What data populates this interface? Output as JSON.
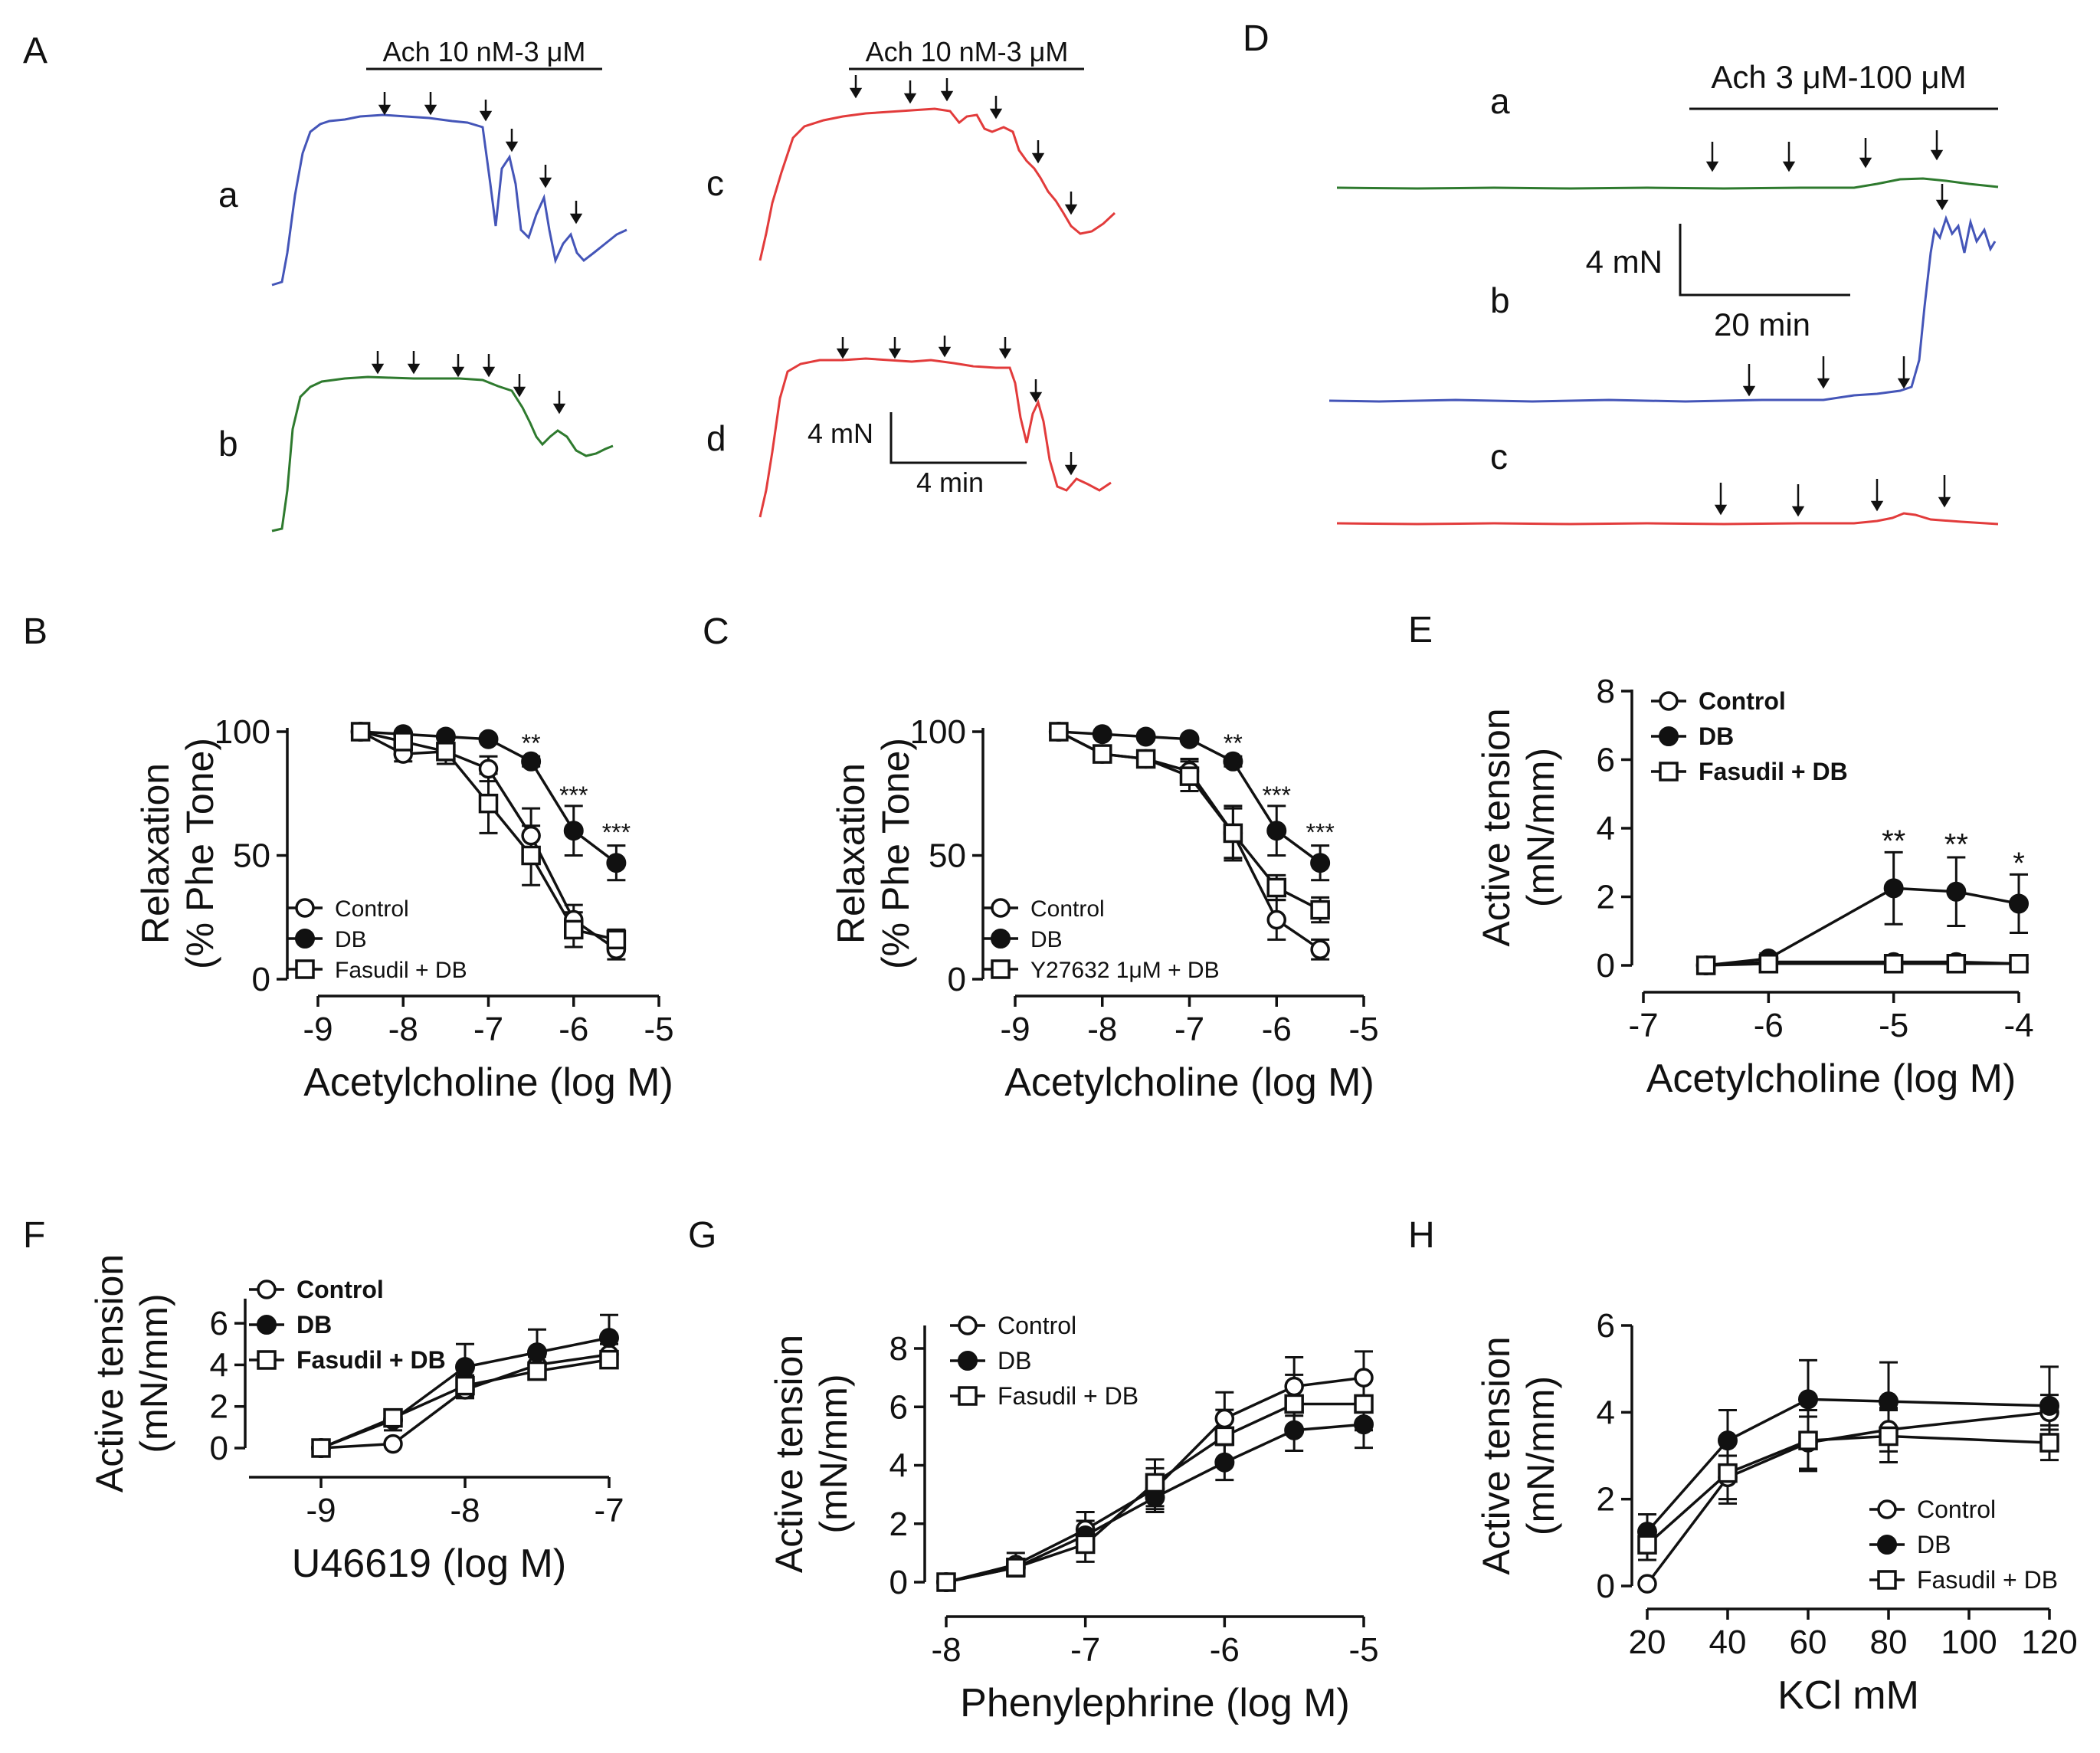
{
  "panel_letters": {
    "A": "A",
    "B": "B",
    "C": "C",
    "D": "D",
    "E": "E",
    "F": "F",
    "G": "G",
    "H": "H"
  },
  "colors": {
    "blue": "#4455b8",
    "green": "#2e7a2e",
    "red": "#e23b3b",
    "ink": "#111111"
  },
  "trace_labels": {
    "a": "a",
    "b": "b",
    "c": "c",
    "d": "d",
    "Da": "a",
    "Db": "b",
    "Dc": "c"
  },
  "annotations": {
    "ach_a": "Ach 10 nM-3 μM",
    "ach_c": "Ach 10 nM-3 μM",
    "ach_D": "Ach 3 μM-100 μM",
    "scale_A_y": "4 mN",
    "scale_A_x": "4 min",
    "scale_D_y": "4 mN",
    "scale_D_x": "20 min"
  },
  "chart_data": [
    {
      "id": "B",
      "type": "line",
      "xlabel": "Acetylcholine (log M)",
      "ylabel": [
        "Relaxation",
        "(% Phe Tone)"
      ],
      "xlim": [
        -9,
        -5
      ],
      "ylim": [
        0,
        100
      ],
      "xticks": [
        -9,
        -8,
        -7,
        -6,
        -5
      ],
      "xtick_labels": [
        "-9",
        "-8",
        "-7",
        "-6",
        "-5"
      ],
      "yticks": [
        0,
        50,
        100
      ],
      "ytick_labels": [
        "0",
        "50",
        "100"
      ],
      "legend": "bottom-left",
      "legend_bold": false,
      "series": [
        {
          "name": "Control",
          "marker": "open-circle",
          "x": [
            -8.5,
            -8,
            -7.5,
            -7,
            -6.5,
            -6,
            -5.5
          ],
          "y": [
            100,
            91,
            92,
            85,
            58,
            24,
            12
          ],
          "err": [
            0,
            3,
            3,
            5,
            11,
            6,
            4
          ]
        },
        {
          "name": "DB",
          "marker": "filled-circle",
          "x": [
            -8.5,
            -8,
            -7.5,
            -7,
            -6.5,
            -6,
            -5.5
          ],
          "y": [
            100,
            99,
            98,
            97,
            88,
            60,
            47
          ],
          "err": [
            0,
            1,
            1,
            1,
            2,
            10,
            7
          ]
        },
        {
          "name": "Fasudil + DB",
          "marker": "open-square",
          "x": [
            -8.5,
            -8,
            -7.5,
            -7,
            -6.5,
            -6,
            -5.5
          ],
          "y": [
            100,
            96,
            92,
            71,
            50,
            20,
            16
          ],
          "err": [
            0,
            3,
            5,
            12,
            12,
            7,
            4
          ]
        }
      ],
      "sig": [
        {
          "x": -6.5,
          "y": 95,
          "text": "**"
        },
        {
          "x": -6,
          "y": 74,
          "text": "***"
        },
        {
          "x": -5.5,
          "y": 59,
          "text": "***"
        }
      ]
    },
    {
      "id": "C",
      "type": "line",
      "xlabel": "Acetylcholine (log M)",
      "ylabel": [
        "Relaxation",
        "(% Phe Tone)"
      ],
      "xlim": [
        -9,
        -5
      ],
      "ylim": [
        0,
        100
      ],
      "xticks": [
        -9,
        -8,
        -7,
        -6,
        -5
      ],
      "xtick_labels": [
        "-9",
        "-8",
        "-7",
        "-6",
        "-5"
      ],
      "yticks": [
        0,
        50,
        100
      ],
      "ytick_labels": [
        "0",
        "50",
        "100"
      ],
      "legend": "bottom-left",
      "legend_bold": false,
      "series": [
        {
          "name": "Control",
          "marker": "open-circle",
          "x": [
            -8.5,
            -8,
            -7.5,
            -7,
            -6.5,
            -6,
            -5.5
          ],
          "y": [
            100,
            91,
            89,
            84,
            59,
            24,
            12
          ],
          "err": [
            0,
            2,
            2,
            5,
            11,
            8,
            4
          ]
        },
        {
          "name": "DB",
          "marker": "filled-circle",
          "x": [
            -8.5,
            -8,
            -7.5,
            -7,
            -6.5,
            -6,
            -5.5
          ],
          "y": [
            100,
            99,
            98,
            97,
            88,
            60,
            47
          ],
          "err": [
            0,
            1,
            1,
            1,
            2,
            10,
            7
          ]
        },
        {
          "name": "Y27632 1μM + DB",
          "marker": "open-square",
          "x": [
            -8.5,
            -8,
            -7.5,
            -7,
            -6.5,
            -6,
            -5.5
          ],
          "y": [
            100,
            91,
            89,
            82,
            59,
            37,
            28
          ],
          "err": [
            0,
            2,
            2,
            6,
            10,
            5,
            5
          ]
        }
      ],
      "sig": [
        {
          "x": -6.5,
          "y": 95,
          "text": "**"
        },
        {
          "x": -6,
          "y": 74,
          "text": "***"
        },
        {
          "x": -5.5,
          "y": 59,
          "text": "***"
        }
      ]
    },
    {
      "id": "E",
      "type": "line",
      "xlabel": "Acetylcholine (log M)",
      "ylabel": [
        "Active tension",
        "(mN/mm)"
      ],
      "xlim": [
        -7,
        -4
      ],
      "ylim": [
        0,
        8
      ],
      "xticks": [
        -7,
        -6,
        -5,
        -4
      ],
      "xtick_labels": [
        "-7",
        "-6",
        "-5",
        "-4"
      ],
      "yticks": [
        0,
        2,
        4,
        6,
        8
      ],
      "ytick_labels": [
        "0",
        "2",
        "4",
        "6",
        "8"
      ],
      "legend": "top-left",
      "legend_bold": true,
      "series": [
        {
          "name": "Control",
          "marker": "open-circle",
          "x": [
            -6.5,
            -6,
            -5,
            -4.5,
            -4
          ],
          "y": [
            0,
            0.1,
            0.1,
            0.1,
            0.05
          ],
          "err": [
            0.1,
            0.1,
            0.1,
            0.1,
            0.1
          ]
        },
        {
          "name": "DB",
          "marker": "filled-circle",
          "x": [
            -6.5,
            -6,
            -5,
            -4.5,
            -4
          ],
          "y": [
            0,
            0.2,
            2.25,
            2.15,
            1.8
          ],
          "err": [
            0.1,
            0.15,
            1.05,
            1.0,
            0.85
          ]
        },
        {
          "name": "Fasudil + DB",
          "marker": "open-square",
          "x": [
            -6.5,
            -6,
            -5,
            -4.5,
            -4
          ],
          "y": [
            0,
            0.05,
            0.05,
            0.05,
            0.05
          ],
          "err": [
            0.1,
            0.1,
            0.1,
            0.1,
            0.1
          ]
        }
      ],
      "sig": [
        {
          "x": -5,
          "y": 3.55,
          "text": "**"
        },
        {
          "x": -4.5,
          "y": 3.45,
          "text": "**"
        },
        {
          "x": -4,
          "y": 2.9,
          "text": "*"
        }
      ]
    },
    {
      "id": "F",
      "type": "line",
      "xlabel": "U46619 (log M)",
      "ylabel": [
        "Active tension",
        "(mN/mm)"
      ],
      "xlim": [
        -9.5,
        -7
      ],
      "ylim": [
        0,
        7
      ],
      "xticks": [
        -9,
        -8,
        -7
      ],
      "xtick_labels": [
        "-9",
        "-8",
        "-7"
      ],
      "yticks": [
        0,
        2,
        4,
        6
      ],
      "ytick_labels": [
        "0",
        "2",
        "4",
        "6"
      ],
      "legend": "top-left",
      "legend_bold": true,
      "series": [
        {
          "name": "Control",
          "marker": "open-circle",
          "x": [
            -9,
            -8.5,
            -8,
            -7.5,
            -7
          ],
          "y": [
            0,
            0.2,
            2.8,
            4.0,
            4.5
          ],
          "err": [
            0,
            0.1,
            0.4,
            0.4,
            0.5
          ]
        },
        {
          "name": "DB",
          "marker": "filled-circle",
          "x": [
            -9,
            -8.5,
            -8,
            -7.5,
            -7
          ],
          "y": [
            0,
            1.35,
            3.9,
            4.6,
            5.3
          ],
          "err": [
            0,
            0.5,
            1.1,
            1.1,
            1.1
          ]
        },
        {
          "name": "Fasudil + DB",
          "marker": "open-square",
          "x": [
            -9,
            -8.5,
            -8,
            -7.5,
            -7
          ],
          "y": [
            0,
            1.45,
            3.0,
            3.7,
            4.25
          ],
          "err": [
            0,
            0.4,
            0.5,
            0.3,
            0.4
          ]
        }
      ],
      "sig": []
    },
    {
      "id": "G",
      "type": "line",
      "xlabel": "Phenylephrine (log M)",
      "ylabel": [
        "Active tension",
        "(mN/mm)"
      ],
      "xlim": [
        -8,
        -5
      ],
      "ylim": [
        0,
        8
      ],
      "xticks": [
        -8,
        -7,
        -6,
        -5
      ],
      "xtick_labels": [
        "-8",
        "-7",
        "-6",
        "-5"
      ],
      "yticks": [
        0,
        2,
        4,
        6,
        8
      ],
      "ytick_labels": [
        "0",
        "2",
        "4",
        "6",
        "8"
      ],
      "legend": "top-left",
      "legend_bold": false,
      "series": [
        {
          "name": "Control",
          "marker": "open-circle",
          "x": [
            -8,
            -7.5,
            -7,
            -6.5,
            -6,
            -5.5,
            -5
          ],
          "y": [
            0,
            0.6,
            1.8,
            3.2,
            5.6,
            6.7,
            7.0
          ],
          "err": [
            0,
            0.4,
            0.6,
            0.7,
            0.9,
            1.0,
            0.9
          ]
        },
        {
          "name": "DB",
          "marker": "filled-circle",
          "x": [
            -8,
            -7.5,
            -7,
            -6.5,
            -6,
            -5.5,
            -5
          ],
          "y": [
            0,
            0.5,
            1.6,
            2.9,
            4.1,
            5.2,
            5.4
          ],
          "err": [
            0,
            0.3,
            0.5,
            0.5,
            0.6,
            0.7,
            0.8
          ]
        },
        {
          "name": "Fasudil + DB",
          "marker": "open-square",
          "x": [
            -8,
            -7.5,
            -7,
            -6.5,
            -6,
            -5.5,
            -5
          ],
          "y": [
            0,
            0.5,
            1.3,
            3.4,
            5.0,
            6.1,
            6.1
          ],
          "err": [
            0,
            0.3,
            0.6,
            0.8,
            0.9,
            1.0,
            0.9
          ]
        }
      ],
      "sig": []
    },
    {
      "id": "H",
      "type": "line",
      "xlabel": "KCl mM",
      "ylabel": [
        "Active tension",
        "(mN/mm)"
      ],
      "xlim": [
        20,
        120
      ],
      "ylim": [
        0,
        6
      ],
      "xticks": [
        20,
        40,
        60,
        80,
        100,
        120
      ],
      "xtick_labels": [
        "20",
        "40",
        "60",
        "80",
        "100",
        "120"
      ],
      "yticks": [
        0,
        2,
        4,
        6
      ],
      "ytick_labels": [
        "0",
        "2",
        "4",
        "6"
      ],
      "legend": "bottom-right",
      "legend_bold": false,
      "series": [
        {
          "name": "Control",
          "marker": "open-circle",
          "x": [
            20,
            40,
            60,
            80,
            120
          ],
          "y": [
            0.05,
            2.5,
            3.3,
            3.6,
            4.0
          ],
          "err": [
            0,
            0.5,
            0.6,
            0.5,
            0.4
          ]
        },
        {
          "name": "DB",
          "marker": "filled-circle",
          "x": [
            20,
            40,
            60,
            80,
            120
          ],
          "y": [
            1.25,
            3.35,
            4.3,
            4.25,
            4.15
          ],
          "err": [
            0.4,
            0.7,
            0.9,
            0.9,
            0.9
          ]
        },
        {
          "name": "Fasudil + DB",
          "marker": "open-square",
          "x": [
            20,
            40,
            60,
            80,
            120
          ],
          "y": [
            0.95,
            2.6,
            3.35,
            3.45,
            3.3
          ],
          "err": [
            0.35,
            0.7,
            0.7,
            0.6,
            0.4
          ]
        }
      ],
      "sig": []
    }
  ]
}
